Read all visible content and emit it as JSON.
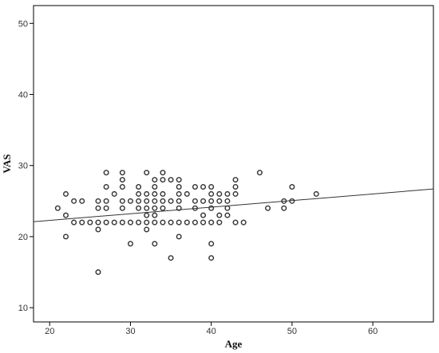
{
  "chart_data": {
    "type": "scatter",
    "title": "",
    "xlabel": "Age",
    "ylabel": "VAS",
    "xlim": [
      18,
      67.5
    ],
    "ylim": [
      8,
      52.5
    ],
    "x_ticks": [
      20,
      30,
      40,
      50,
      60
    ],
    "y_ticks": [
      10,
      20,
      30,
      40,
      50
    ],
    "grid": false,
    "marker": "open-circle",
    "point_color": "#333333",
    "line_color": "#333333",
    "series": [
      {
        "points": [
          {
            "x": 21,
            "y": 24
          },
          {
            "x": 22,
            "y": 26
          },
          {
            "x": 22,
            "y": 23
          },
          {
            "x": 22,
            "y": 20
          },
          {
            "x": 23,
            "y": 22
          },
          {
            "x": 23,
            "y": 25
          },
          {
            "x": 24,
            "y": 25
          },
          {
            "x": 24,
            "y": 22
          },
          {
            "x": 25,
            "y": 22
          },
          {
            "x": 26,
            "y": 22
          },
          {
            "x": 26,
            "y": 25
          },
          {
            "x": 26,
            "y": 24
          },
          {
            "x": 26,
            "y": 21
          },
          {
            "x": 26,
            "y": 15
          },
          {
            "x": 27,
            "y": 29
          },
          {
            "x": 27,
            "y": 27
          },
          {
            "x": 27,
            "y": 25
          },
          {
            "x": 27,
            "y": 24
          },
          {
            "x": 27,
            "y": 22
          },
          {
            "x": 28,
            "y": 26
          },
          {
            "x": 28,
            "y": 22
          },
          {
            "x": 29,
            "y": 29
          },
          {
            "x": 29,
            "y": 28
          },
          {
            "x": 29,
            "y": 27
          },
          {
            "x": 29,
            "y": 25
          },
          {
            "x": 29,
            "y": 24
          },
          {
            "x": 29,
            "y": 22
          },
          {
            "x": 30,
            "y": 25
          },
          {
            "x": 30,
            "y": 22
          },
          {
            "x": 30,
            "y": 19
          },
          {
            "x": 31,
            "y": 27
          },
          {
            "x": 31,
            "y": 26
          },
          {
            "x": 31,
            "y": 25
          },
          {
            "x": 31,
            "y": 24
          },
          {
            "x": 31,
            "y": 22
          },
          {
            "x": 32,
            "y": 29
          },
          {
            "x": 32,
            "y": 26
          },
          {
            "x": 32,
            "y": 25
          },
          {
            "x": 32,
            "y": 24
          },
          {
            "x": 32,
            "y": 23
          },
          {
            "x": 32,
            "y": 22
          },
          {
            "x": 32,
            "y": 21
          },
          {
            "x": 33,
            "y": 28
          },
          {
            "x": 33,
            "y": 27
          },
          {
            "x": 33,
            "y": 26
          },
          {
            "x": 33,
            "y": 25
          },
          {
            "x": 33,
            "y": 24
          },
          {
            "x": 33,
            "y": 23
          },
          {
            "x": 33,
            "y": 22
          },
          {
            "x": 33,
            "y": 19
          },
          {
            "x": 34,
            "y": 29
          },
          {
            "x": 34,
            "y": 28
          },
          {
            "x": 34,
            "y": 26
          },
          {
            "x": 34,
            "y": 25
          },
          {
            "x": 34,
            "y": 24
          },
          {
            "x": 34,
            "y": 22
          },
          {
            "x": 35,
            "y": 28
          },
          {
            "x": 35,
            "y": 25
          },
          {
            "x": 35,
            "y": 22
          },
          {
            "x": 35,
            "y": 17
          },
          {
            "x": 36,
            "y": 28
          },
          {
            "x": 36,
            "y": 27
          },
          {
            "x": 36,
            "y": 26
          },
          {
            "x": 36,
            "y": 25
          },
          {
            "x": 36,
            "y": 24
          },
          {
            "x": 36,
            "y": 22
          },
          {
            "x": 36,
            "y": 20
          },
          {
            "x": 37,
            "y": 26
          },
          {
            "x": 37,
            "y": 22
          },
          {
            "x": 38,
            "y": 27
          },
          {
            "x": 38,
            "y": 25
          },
          {
            "x": 38,
            "y": 24
          },
          {
            "x": 38,
            "y": 22
          },
          {
            "x": 39,
            "y": 27
          },
          {
            "x": 39,
            "y": 25
          },
          {
            "x": 39,
            "y": 23
          },
          {
            "x": 39,
            "y": 22
          },
          {
            "x": 40,
            "y": 27
          },
          {
            "x": 40,
            "y": 26
          },
          {
            "x": 40,
            "y": 25
          },
          {
            "x": 40,
            "y": 24
          },
          {
            "x": 40,
            "y": 22
          },
          {
            "x": 40,
            "y": 19
          },
          {
            "x": 40,
            "y": 17
          },
          {
            "x": 41,
            "y": 26
          },
          {
            "x": 41,
            "y": 25
          },
          {
            "x": 41,
            "y": 23
          },
          {
            "x": 41,
            "y": 22
          },
          {
            "x": 42,
            "y": 26
          },
          {
            "x": 42,
            "y": 25
          },
          {
            "x": 42,
            "y": 24
          },
          {
            "x": 42,
            "y": 23
          },
          {
            "x": 43,
            "y": 28
          },
          {
            "x": 43,
            "y": 27
          },
          {
            "x": 43,
            "y": 26
          },
          {
            "x": 43,
            "y": 22
          },
          {
            "x": 44,
            "y": 22
          },
          {
            "x": 46,
            "y": 29
          },
          {
            "x": 47,
            "y": 24
          },
          {
            "x": 49,
            "y": 25
          },
          {
            "x": 49,
            "y": 24
          },
          {
            "x": 50,
            "y": 27
          },
          {
            "x": 50,
            "y": 25
          },
          {
            "x": 53,
            "y": 26
          }
        ]
      }
    ],
    "fit_line": {
      "x": [
        18,
        67.5
      ],
      "y": [
        22.1,
        26.7
      ]
    }
  }
}
